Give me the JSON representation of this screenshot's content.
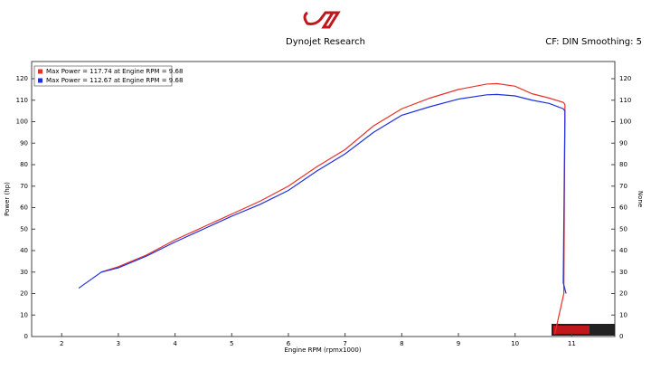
{
  "chart_data": {
    "type": "line",
    "title": "Dynojet Research",
    "subtitle": "CF: DIN Smoothing: 5",
    "x_label": "Engine RPM (rpmx1000)",
    "y_label": "Power (hp)",
    "y2_label": "None",
    "xlim": [
      1.47,
      11.76
    ],
    "ylim": [
      0,
      128
    ],
    "xticks": [
      2,
      3,
      4,
      5,
      6,
      7,
      8,
      9,
      10,
      11
    ],
    "yticks": [
      0,
      10,
      20,
      30,
      40,
      50,
      60,
      70,
      80,
      90,
      100,
      110,
      120
    ],
    "y2lim": [
      0,
      128
    ],
    "y2ticks": [
      0,
      10,
      20,
      30,
      40,
      50,
      60,
      70,
      80,
      90,
      100,
      110,
      120
    ],
    "legend": "top-left",
    "series": [
      {
        "name": "Max Power = 117.74 at Engine RPM = 9.68",
        "color": "#e8312a",
        "x": [
          2.7,
          3,
          3.5,
          4,
          4.5,
          5,
          5.5,
          6,
          6.5,
          7,
          7.5,
          8,
          8.5,
          9,
          9.5,
          9.68,
          10,
          10.3,
          10.6,
          10.85,
          10.88,
          10.86,
          10.7
        ],
        "values": [
          30,
          32.5,
          38,
          45,
          51,
          57,
          63,
          70,
          79,
          87,
          98,
          106,
          111,
          115,
          117.5,
          117.74,
          116.5,
          113,
          111,
          109,
          108,
          20,
          1
        ]
      },
      {
        "name": "Max Power = 112.67 at Engine RPM = 9.68",
        "color": "#1f2fe0",
        "x": [
          2.3,
          2.7,
          3,
          3.5,
          4,
          4.5,
          5,
          5.5,
          6,
          6.5,
          7,
          7.5,
          8,
          8.5,
          9,
          9.5,
          9.68,
          10,
          10.3,
          10.6,
          10.85,
          10.88,
          10.85,
          10.9
        ],
        "values": [
          22.5,
          30,
          32,
          37.5,
          44,
          50,
          56,
          61.5,
          68,
          77,
          85,
          95,
          103,
          107,
          110.5,
          112.5,
          112.67,
          112,
          110,
          108.5,
          106,
          105,
          25,
          20
        ]
      }
    ]
  }
}
